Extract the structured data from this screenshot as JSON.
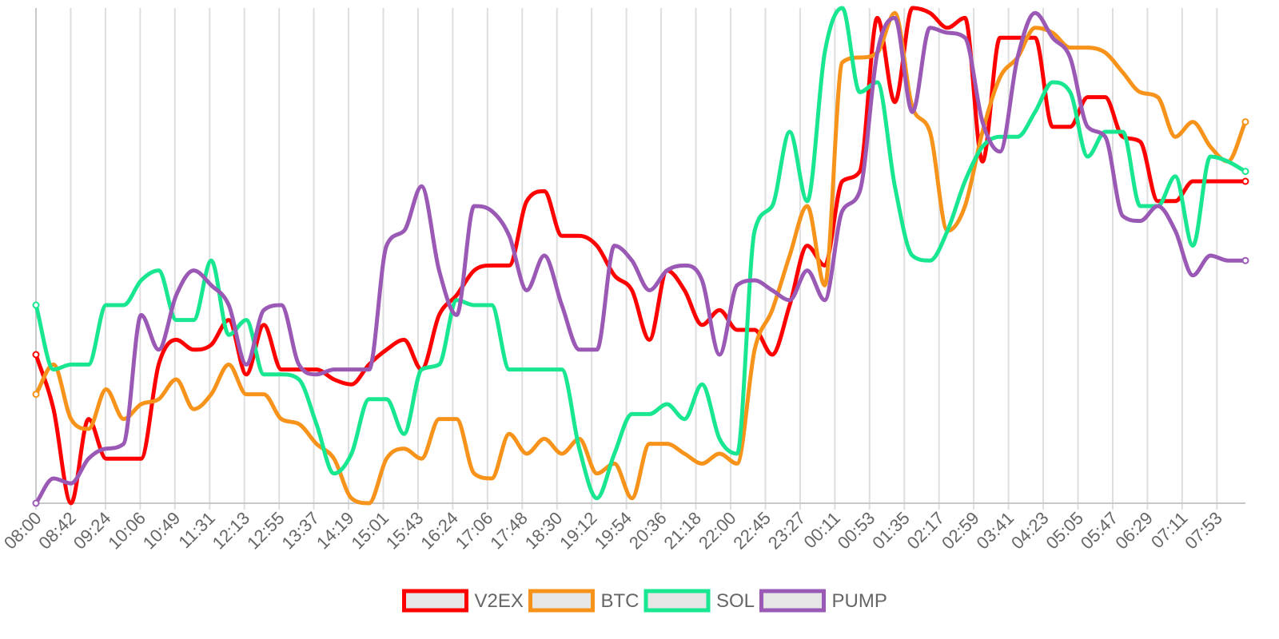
{
  "chart_data": {
    "type": "line",
    "title": "",
    "xlabel": "",
    "ylabel": "",
    "ylim": [
      0,
      100
    ],
    "grid": "vertical",
    "legend_position": "bottom-center",
    "categories": [
      "08:00",
      "08:42",
      "09:24",
      "10:06",
      "10:49",
      "11:31",
      "12:13",
      "12:55",
      "13:37",
      "14:19",
      "15:01",
      "15:43",
      "16:24",
      "17:06",
      "17:48",
      "18:30",
      "19:12",
      "19:54",
      "20:36",
      "21:18",
      "22:00",
      "22:45",
      "23:27",
      "00:11",
      "00:53",
      "01:35",
      "02:17",
      "02:59",
      "03:41",
      "04:23",
      "05:05",
      "05:47",
      "06:29",
      "07:11",
      "07:53"
    ],
    "x": [
      0,
      0.5,
      1,
      1.5,
      2,
      2.5,
      3,
      3.5,
      4,
      4.5,
      5,
      5.5,
      6,
      6.5,
      7,
      7.5,
      8,
      8.5,
      9,
      9.5,
      10,
      10.5,
      11,
      11.5,
      12,
      12.5,
      13,
      13.5,
      14,
      14.5,
      15,
      15.5,
      16,
      16.5,
      17,
      17.5,
      18,
      18.5,
      19,
      19.5,
      20,
      20.5,
      21,
      21.5,
      22,
      22.5,
      23,
      23.5,
      24,
      24.5,
      25,
      25.5,
      26,
      26.5,
      27,
      27.5,
      28,
      28.5,
      29,
      29.5,
      30,
      30.5,
      31,
      31.5,
      32,
      32.5,
      33,
      33.5,
      34,
      34.5
    ],
    "series": [
      {
        "name": "V2EX",
        "color": "#ff0000",
        "values": [
          30,
          19,
          0,
          17,
          9,
          9,
          9,
          28,
          33,
          31,
          32,
          37,
          26,
          36,
          27,
          27,
          27,
          25,
          24,
          28,
          31,
          33,
          27,
          38,
          42,
          47,
          48,
          48,
          61,
          63,
          54,
          54,
          52,
          46,
          43,
          33,
          47,
          43,
          36,
          39,
          35,
          35,
          30,
          40,
          52,
          48,
          65,
          67,
          98,
          81,
          100,
          99,
          96,
          98,
          69,
          94,
          94,
          94,
          76,
          76,
          82,
          82,
          74,
          73,
          61,
          61,
          65,
          65,
          65,
          65
        ]
      },
      {
        "name": "BTC",
        "color": "#f7931a",
        "values": [
          22,
          28,
          17,
          15,
          23,
          17,
          20,
          21,
          25,
          19,
          22,
          28,
          22,
          22,
          17,
          16,
          12,
          9,
          1,
          0,
          9,
          11,
          9,
          17,
          17,
          6,
          5,
          14,
          10,
          13,
          10,
          13,
          6,
          8,
          1,
          12,
          12,
          10,
          8,
          10,
          8,
          31,
          39,
          50,
          60,
          44,
          89,
          90,
          91,
          99,
          80,
          75,
          55,
          60,
          75,
          86,
          90,
          96,
          95,
          92,
          92,
          91,
          87,
          83,
          82,
          74,
          77,
          72,
          69,
          77
        ]
      },
      {
        "name": "SOL",
        "color": "#18e691",
        "values": [
          40,
          27,
          28,
          28,
          40,
          40,
          45,
          47,
          37,
          37,
          49,
          34,
          37,
          26,
          26,
          25,
          16,
          6,
          10,
          21,
          21,
          14,
          27,
          28,
          41,
          40,
          40,
          27,
          27,
          27,
          27,
          11,
          1,
          10,
          18,
          18,
          20,
          17,
          24,
          13,
          10,
          55,
          60,
          75,
          61,
          91,
          100,
          83,
          85,
          64,
          50,
          49,
          55,
          65,
          72,
          74,
          74,
          79,
          85,
          83,
          70,
          75,
          75,
          60,
          60,
          66,
          52,
          70,
          69,
          67
        ]
      },
      {
        "name": "PUMP",
        "color": "#9b59b6",
        "values": [
          0,
          5,
          4,
          9,
          11,
          12,
          38,
          31,
          42,
          47,
          44,
          40,
          28,
          39,
          40,
          28,
          26,
          27,
          27,
          27,
          52,
          55,
          64,
          47,
          38,
          60,
          59,
          54,
          43,
          50,
          40,
          31,
          31,
          52,
          49,
          43,
          47,
          48,
          45,
          30,
          44,
          45,
          43,
          41,
          47,
          41,
          59,
          63,
          91,
          98,
          79,
          96,
          95,
          94,
          77,
          71,
          90,
          99,
          94,
          90,
          76,
          74,
          58,
          57,
          60,
          55,
          46,
          50,
          49,
          49
        ]
      }
    ]
  }
}
